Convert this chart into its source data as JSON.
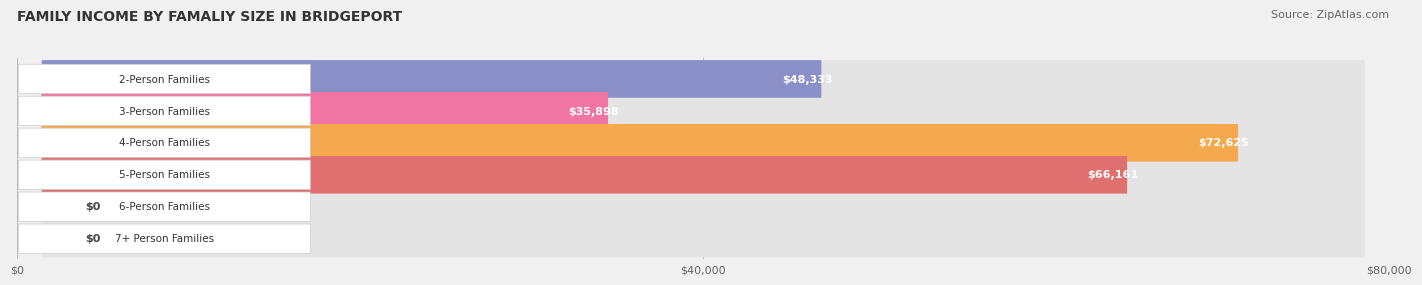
{
  "title": "FAMILY INCOME BY FAMALIY SIZE IN BRIDGEPORT",
  "source": "Source: ZipAtlas.com",
  "categories": [
    "2-Person Families",
    "3-Person Families",
    "4-Person Families",
    "5-Person Families",
    "6-Person Families",
    "7+ Person Families"
  ],
  "values": [
    48333,
    35898,
    72625,
    66161,
    0,
    0
  ],
  "bar_colors": [
    "#8b8fc8",
    "#f075a0",
    "#f5a94e",
    "#e07070",
    "#9ab5d8",
    "#b8a0c8"
  ],
  "label_values": [
    "$48,333",
    "$35,898",
    "$72,625",
    "$66,161",
    "$0",
    "$0"
  ],
  "xlim": [
    0,
    80000
  ],
  "xticks": [
    0,
    40000,
    80000
  ],
  "xticklabels": [
    "$0",
    "$40,000",
    "$80,000"
  ],
  "background_color": "#f0f0f0",
  "bar_bg_color": "#e4e4e4",
  "title_fontsize": 10,
  "source_fontsize": 8,
  "label_fontsize": 8,
  "category_fontsize": 7.5,
  "bar_height": 0.62,
  "fig_width": 14.06,
  "fig_height": 3.05
}
